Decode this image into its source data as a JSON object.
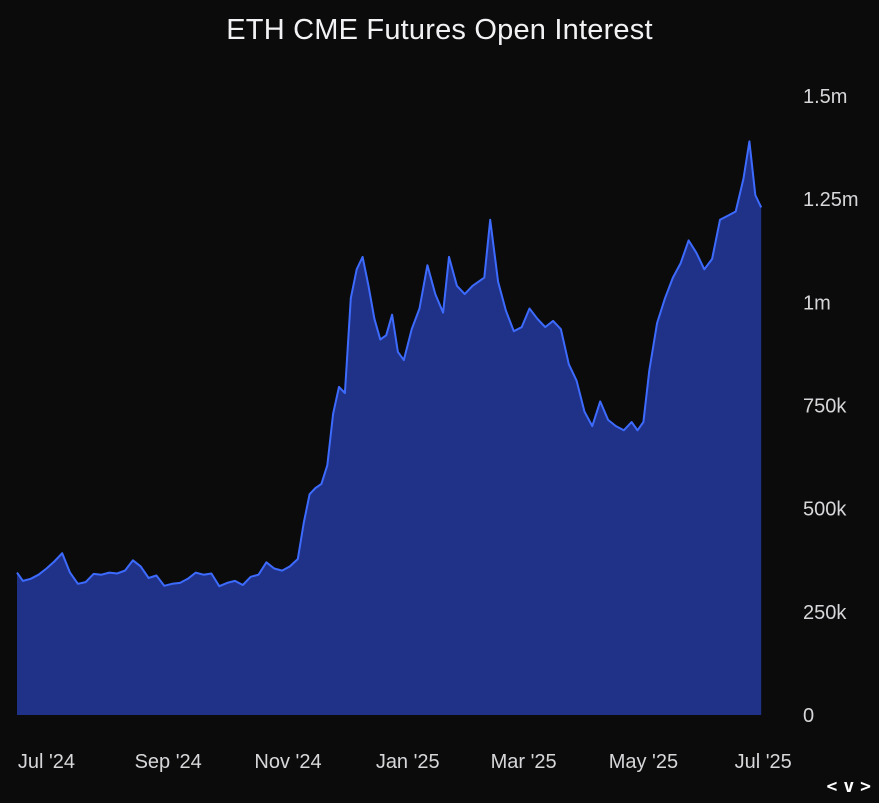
{
  "chart_data": {
    "type": "area",
    "title": "ETH CME Futures Open Interest",
    "xlabel": "",
    "ylabel": "",
    "ylim": [
      0,
      1500000
    ],
    "y_ticks": [
      {
        "value": 0,
        "label": "0"
      },
      {
        "value": 250000,
        "label": "250k"
      },
      {
        "value": 500000,
        "label": "500k"
      },
      {
        "value": 750000,
        "label": "750k"
      },
      {
        "value": 1000000,
        "label": "1m"
      },
      {
        "value": 1250000,
        "label": "1.25m"
      },
      {
        "value": 1500000,
        "label": "1.5m"
      }
    ],
    "x_ticks": [
      {
        "date": "2024-07-01",
        "label": "Jul '24"
      },
      {
        "date": "2024-09-01",
        "label": "Sep '24"
      },
      {
        "date": "2024-11-01",
        "label": "Nov '24"
      },
      {
        "date": "2025-01-01",
        "label": "Jan '25"
      },
      {
        "date": "2025-03-01",
        "label": "Mar '25"
      },
      {
        "date": "2025-05-01",
        "label": "May '25"
      },
      {
        "date": "2025-07-01",
        "label": "Jul '25"
      }
    ],
    "xlim": [
      "2024-06-16",
      "2025-07-06"
    ],
    "grid": false,
    "legend": "none",
    "colors": {
      "fill": "#1f3288",
      "line": "#3d6bff"
    },
    "series": [
      {
        "name": "",
        "points": [
          [
            "2024-06-16",
            345000
          ],
          [
            "2024-06-19",
            325000
          ],
          [
            "2024-06-23",
            330000
          ],
          [
            "2024-06-27",
            340000
          ],
          [
            "2024-07-01",
            355000
          ],
          [
            "2024-07-05",
            372000
          ],
          [
            "2024-07-09",
            392000
          ],
          [
            "2024-07-13",
            345000
          ],
          [
            "2024-07-17",
            318000
          ],
          [
            "2024-07-21",
            322000
          ],
          [
            "2024-07-25",
            342000
          ],
          [
            "2024-07-29",
            340000
          ],
          [
            "2024-08-02",
            345000
          ],
          [
            "2024-08-06",
            343000
          ],
          [
            "2024-08-10",
            350000
          ],
          [
            "2024-08-14",
            375000
          ],
          [
            "2024-08-18",
            360000
          ],
          [
            "2024-08-22",
            332000
          ],
          [
            "2024-08-26",
            338000
          ],
          [
            "2024-08-30",
            313000
          ],
          [
            "2024-09-03",
            318000
          ],
          [
            "2024-09-07",
            320000
          ],
          [
            "2024-09-11",
            330000
          ],
          [
            "2024-09-15",
            345000
          ],
          [
            "2024-09-19",
            340000
          ],
          [
            "2024-09-23",
            343000
          ],
          [
            "2024-09-27",
            312000
          ],
          [
            "2024-10-01",
            320000
          ],
          [
            "2024-10-05",
            325000
          ],
          [
            "2024-10-09",
            315000
          ],
          [
            "2024-10-13",
            335000
          ],
          [
            "2024-10-17",
            340000
          ],
          [
            "2024-10-21",
            370000
          ],
          [
            "2024-10-25",
            355000
          ],
          [
            "2024-10-29",
            350000
          ],
          [
            "2024-11-02",
            360000
          ],
          [
            "2024-11-06",
            378000
          ],
          [
            "2024-11-09",
            465000
          ],
          [
            "2024-11-12",
            535000
          ],
          [
            "2024-11-15",
            550000
          ],
          [
            "2024-11-18",
            560000
          ],
          [
            "2024-11-21",
            605000
          ],
          [
            "2024-11-24",
            730000
          ],
          [
            "2024-11-27",
            795000
          ],
          [
            "2024-11-30",
            780000
          ],
          [
            "2024-12-03",
            1010000
          ],
          [
            "2024-12-06",
            1080000
          ],
          [
            "2024-12-09",
            1110000
          ],
          [
            "2024-12-12",
            1040000
          ],
          [
            "2024-12-15",
            960000
          ],
          [
            "2024-12-18",
            910000
          ],
          [
            "2024-12-21",
            920000
          ],
          [
            "2024-12-24",
            970000
          ],
          [
            "2024-12-27",
            880000
          ],
          [
            "2024-12-30",
            860000
          ],
          [
            "2025-01-03",
            935000
          ],
          [
            "2025-01-07",
            985000
          ],
          [
            "2025-01-11",
            1090000
          ],
          [
            "2025-01-15",
            1020000
          ],
          [
            "2025-01-19",
            975000
          ],
          [
            "2025-01-22",
            1110000
          ],
          [
            "2025-01-26",
            1040000
          ],
          [
            "2025-01-30",
            1020000
          ],
          [
            "2025-02-03",
            1040000
          ],
          [
            "2025-02-06",
            1050000
          ],
          [
            "2025-02-09",
            1060000
          ],
          [
            "2025-02-12",
            1200000
          ],
          [
            "2025-02-16",
            1050000
          ],
          [
            "2025-02-20",
            980000
          ],
          [
            "2025-02-24",
            930000
          ],
          [
            "2025-02-28",
            940000
          ],
          [
            "2025-03-04",
            985000
          ],
          [
            "2025-03-08",
            960000
          ],
          [
            "2025-03-12",
            940000
          ],
          [
            "2025-03-16",
            955000
          ],
          [
            "2025-03-20",
            935000
          ],
          [
            "2025-03-24",
            850000
          ],
          [
            "2025-03-28",
            810000
          ],
          [
            "2025-04-01",
            735000
          ],
          [
            "2025-04-05",
            700000
          ],
          [
            "2025-04-09",
            760000
          ],
          [
            "2025-04-13",
            715000
          ],
          [
            "2025-04-17",
            700000
          ],
          [
            "2025-04-21",
            690000
          ],
          [
            "2025-04-25",
            710000
          ],
          [
            "2025-04-28",
            690000
          ],
          [
            "2025-05-01",
            710000
          ],
          [
            "2025-05-04",
            835000
          ],
          [
            "2025-05-08",
            950000
          ],
          [
            "2025-05-12",
            1010000
          ],
          [
            "2025-05-16",
            1060000
          ],
          [
            "2025-05-20",
            1095000
          ],
          [
            "2025-05-24",
            1150000
          ],
          [
            "2025-05-28",
            1120000
          ],
          [
            "2025-06-01",
            1080000
          ],
          [
            "2025-06-05",
            1105000
          ],
          [
            "2025-06-09",
            1200000
          ],
          [
            "2025-06-13",
            1210000
          ],
          [
            "2025-06-17",
            1220000
          ],
          [
            "2025-06-21",
            1300000
          ],
          [
            "2025-06-24",
            1390000
          ],
          [
            "2025-06-27",
            1260000
          ],
          [
            "2025-06-30",
            1230000
          ]
        ]
      }
    ]
  },
  "nav": {
    "prev_label": "<",
    "toggle_label": "v",
    "next_label": ">"
  }
}
